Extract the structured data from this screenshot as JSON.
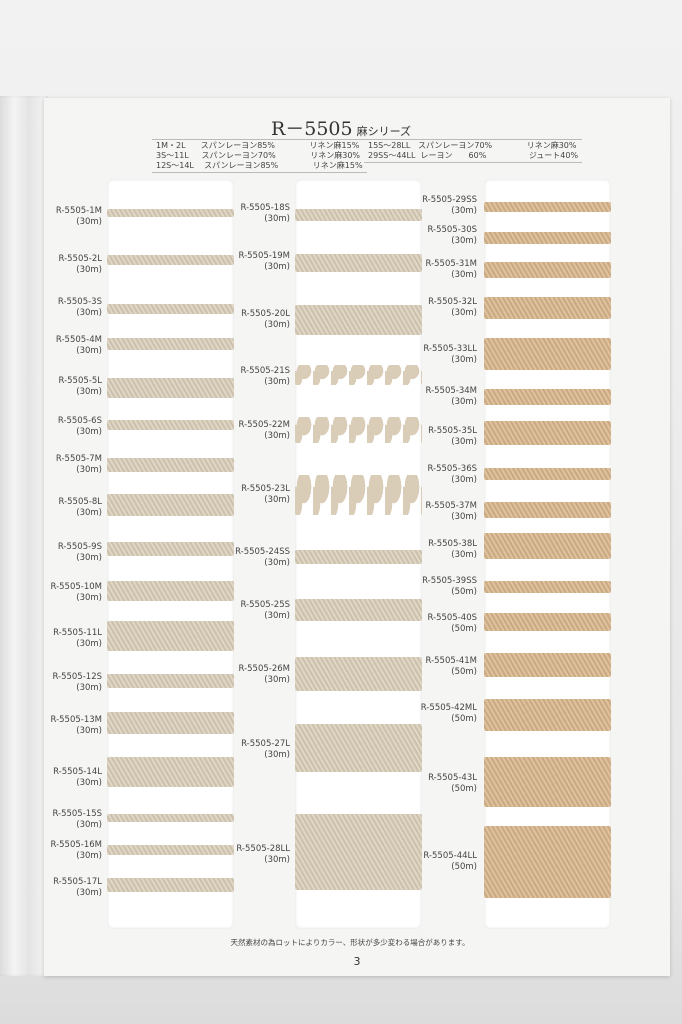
{
  "header": {
    "title": "R－5505",
    "subtitle": "麻シリーズ",
    "composition_left": [
      [
        "1M・2L",
        "スパンレーヨン85%",
        "リネン麻15%"
      ],
      [
        "3S～11L",
        "スパンレーヨン70%",
        "リネン麻30%"
      ],
      [
        "12S～14L",
        "スパンレーヨン85%",
        "リネン麻15%"
      ]
    ],
    "composition_right": [
      [
        "15S～28LL",
        "スパンレーヨン70%",
        "リネン麻30%"
      ],
      [
        "29SS～44LL",
        "レーヨン　　60%",
        "ジュート40%"
      ]
    ]
  },
  "columns": [
    {
      "items": [
        {
          "code": "R-5505-1M",
          "length": "(30m)"
        },
        {
          "code": "R-5505-2L",
          "length": "(30m)"
        },
        {
          "code": "R-5505-3S",
          "length": "(30m)"
        },
        {
          "code": "R-5505-4M",
          "length": "(30m)"
        },
        {
          "code": "R-5505-5L",
          "length": "(30m)"
        },
        {
          "code": "R-5505-6S",
          "length": "(30m)"
        },
        {
          "code": "R-5505-7M",
          "length": "(30m)"
        },
        {
          "code": "R-5505-8L",
          "length": "(30m)"
        },
        {
          "code": "R-5505-9S",
          "length": "(30m)"
        },
        {
          "code": "R-5505-10M",
          "length": "(30m)"
        },
        {
          "code": "R-5505-11L",
          "length": "(30m)"
        },
        {
          "code": "R-5505-12S",
          "length": "(30m)"
        },
        {
          "code": "R-5505-13M",
          "length": "(30m)"
        },
        {
          "code": "R-5505-14L",
          "length": "(30m)"
        },
        {
          "code": "R-5505-15S",
          "length": "(30m)"
        },
        {
          "code": "R-5505-16M",
          "length": "(30m)"
        },
        {
          "code": "R-5505-17L",
          "length": "(30m)"
        }
      ]
    },
    {
      "items": [
        {
          "code": "R-5505-18S",
          "length": "(30m)"
        },
        {
          "code": "R-5505-19M",
          "length": "(30m)"
        },
        {
          "code": "R-5505-20L",
          "length": "(30m)"
        },
        {
          "code": "R-5505-21S",
          "length": "(30m)"
        },
        {
          "code": "R-5505-22M",
          "length": "(30m)"
        },
        {
          "code": "R-5505-23L",
          "length": "(30m)"
        },
        {
          "code": "R-5505-24SS",
          "length": "(30m)"
        },
        {
          "code": "R-5505-25S",
          "length": "(30m)"
        },
        {
          "code": "R-5505-26M",
          "length": "(30m)"
        },
        {
          "code": "R-5505-27L",
          "length": "(30m)"
        },
        {
          "code": "R-5505-28LL",
          "length": "(30m)"
        }
      ]
    },
    {
      "items": [
        {
          "code": "R-5505-29SS",
          "length": "(30m)"
        },
        {
          "code": "R-5505-30S",
          "length": "(30m)"
        },
        {
          "code": "R-5505-31M",
          "length": "(30m)"
        },
        {
          "code": "R-5505-32L",
          "length": "(30m)"
        },
        {
          "code": "R-5505-33LL",
          "length": "(30m)"
        },
        {
          "code": "R-5505-34M",
          "length": "(30m)"
        },
        {
          "code": "R-5505-35L",
          "length": "(30m)"
        },
        {
          "code": "R-5505-36S",
          "length": "(30m)"
        },
        {
          "code": "R-5505-37M",
          "length": "(30m)"
        },
        {
          "code": "R-5505-38L",
          "length": "(30m)"
        },
        {
          "code": "R-5505-39SS",
          "length": "(50m)"
        },
        {
          "code": "R-5505-40S",
          "length": "(50m)"
        },
        {
          "code": "R-5505-41M",
          "length": "(50m)"
        },
        {
          "code": "R-5505-42ML",
          "length": "(50m)"
        },
        {
          "code": "R-5505-43L",
          "length": "(50m)"
        },
        {
          "code": "R-5505-44LL",
          "length": "(50m)"
        }
      ]
    }
  ],
  "colors": {
    "linen": "#d9cdb8",
    "jute": "#d7b48a"
  },
  "footer": {
    "note": "天然素材の為ロットによりカラー、形状が多少変わる場合があります。",
    "page_number": "3"
  }
}
